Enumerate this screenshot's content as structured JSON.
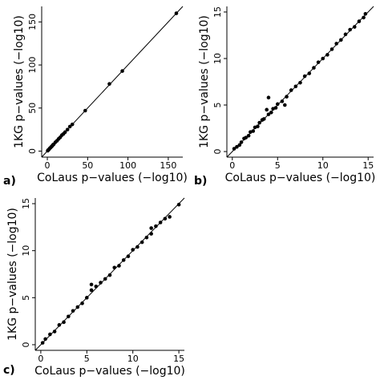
{
  "chart_data": [
    {
      "type": "scatter",
      "panel_label": "a)",
      "x_label": "CoLaus p−values (−log10)",
      "y_label": "1KG p−values (−log10)",
      "color": "#000000",
      "diagonal": true,
      "xlim": [
        -7,
        168
      ],
      "ylim": [
        -7,
        168
      ],
      "xticks": [
        0,
        50,
        100,
        150
      ],
      "yticks": [
        0,
        50,
        100,
        150
      ],
      "x": [
        0.5,
        1,
        2,
        3,
        4,
        5,
        6,
        7,
        8,
        10,
        12,
        14,
        16,
        18,
        20,
        22,
        25,
        28,
        31,
        47,
        77,
        93,
        160
      ],
      "y": [
        0.5,
        1.1,
        2,
        3.2,
        4,
        5.1,
        6,
        7.2,
        8,
        10.3,
        12,
        14.2,
        16,
        18.5,
        20,
        22,
        25,
        28.5,
        31,
        47,
        78,
        93,
        160
      ]
    },
    {
      "type": "scatter",
      "panel_label": "b)",
      "x_label": "CoLaus p−values (−log10)",
      "y_label": "1KG p−values (−log10)",
      "color": "#000000",
      "diagonal": true,
      "xlim": [
        -0.6,
        15.6
      ],
      "ylim": [
        -0.6,
        15.6
      ],
      "xticks": [
        0,
        5,
        10,
        15
      ],
      "yticks": [
        0,
        5,
        10,
        15
      ],
      "x": [
        0.2,
        0.5,
        0.8,
        1.0,
        1.3,
        1.5,
        1.8,
        2.0,
        2.3,
        2.5,
        2.8,
        3.0,
        3.3,
        3.5,
        3.8,
        4.0,
        4.0,
        4.3,
        4.5,
        4.8,
        5.0,
        5.5,
        5.8,
        6.0,
        6.5,
        7.0,
        7.5,
        8.0,
        8.5,
        9.0,
        9.5,
        10.0,
        10.5,
        11.0,
        11.5,
        12.0,
        12.5,
        13.0,
        13.5,
        14.0,
        14.5,
        14.7
      ],
      "y": [
        0.3,
        0.5,
        0.7,
        1.0,
        1.4,
        1.5,
        1.7,
        2.1,
        2.2,
        2.6,
        2.7,
        3.1,
        3.4,
        3.5,
        4.5,
        4.0,
        5.8,
        4.2,
        4.6,
        4.7,
        5.1,
        5.4,
        5.0,
        5.9,
        6.6,
        7.0,
        7.4,
        8.1,
        8.4,
        9.0,
        9.6,
        10.0,
        10.4,
        11.0,
        11.6,
        12.0,
        12.6,
        13.1,
        13.4,
        14.0,
        14.4,
        14.8
      ]
    },
    {
      "type": "scatter",
      "panel_label": "c)",
      "x_label": "CoLaus p−values (−log10)",
      "y_label": "1KG p−values (−log10)",
      "color": "#000000",
      "diagonal": true,
      "xlim": [
        -0.6,
        15.6
      ],
      "ylim": [
        -0.6,
        15.6
      ],
      "xticks": [
        0,
        5,
        10,
        15
      ],
      "yticks": [
        0,
        5,
        10,
        15
      ],
      "x": [
        0.2,
        0.5,
        1,
        1.5,
        2,
        2.5,
        3,
        3.5,
        4,
        4.5,
        5,
        5.5,
        5.5,
        6,
        6.5,
        7,
        7.5,
        8,
        8.5,
        9,
        9.5,
        10,
        10.5,
        11,
        11.5,
        12,
        12,
        12.5,
        13,
        13.5,
        14,
        15
      ],
      "y": [
        0.2,
        0.6,
        1.1,
        1.4,
        2.1,
        2.4,
        3.0,
        3.6,
        4.0,
        4.4,
        5.0,
        5.8,
        6.4,
        6.2,
        6.6,
        7.0,
        7.4,
        8.2,
        8.4,
        9.0,
        9.4,
        10.1,
        10.4,
        10.9,
        11.4,
        11.8,
        12.4,
        12.6,
        13.0,
        13.4,
        13.6,
        14.9
      ]
    }
  ]
}
